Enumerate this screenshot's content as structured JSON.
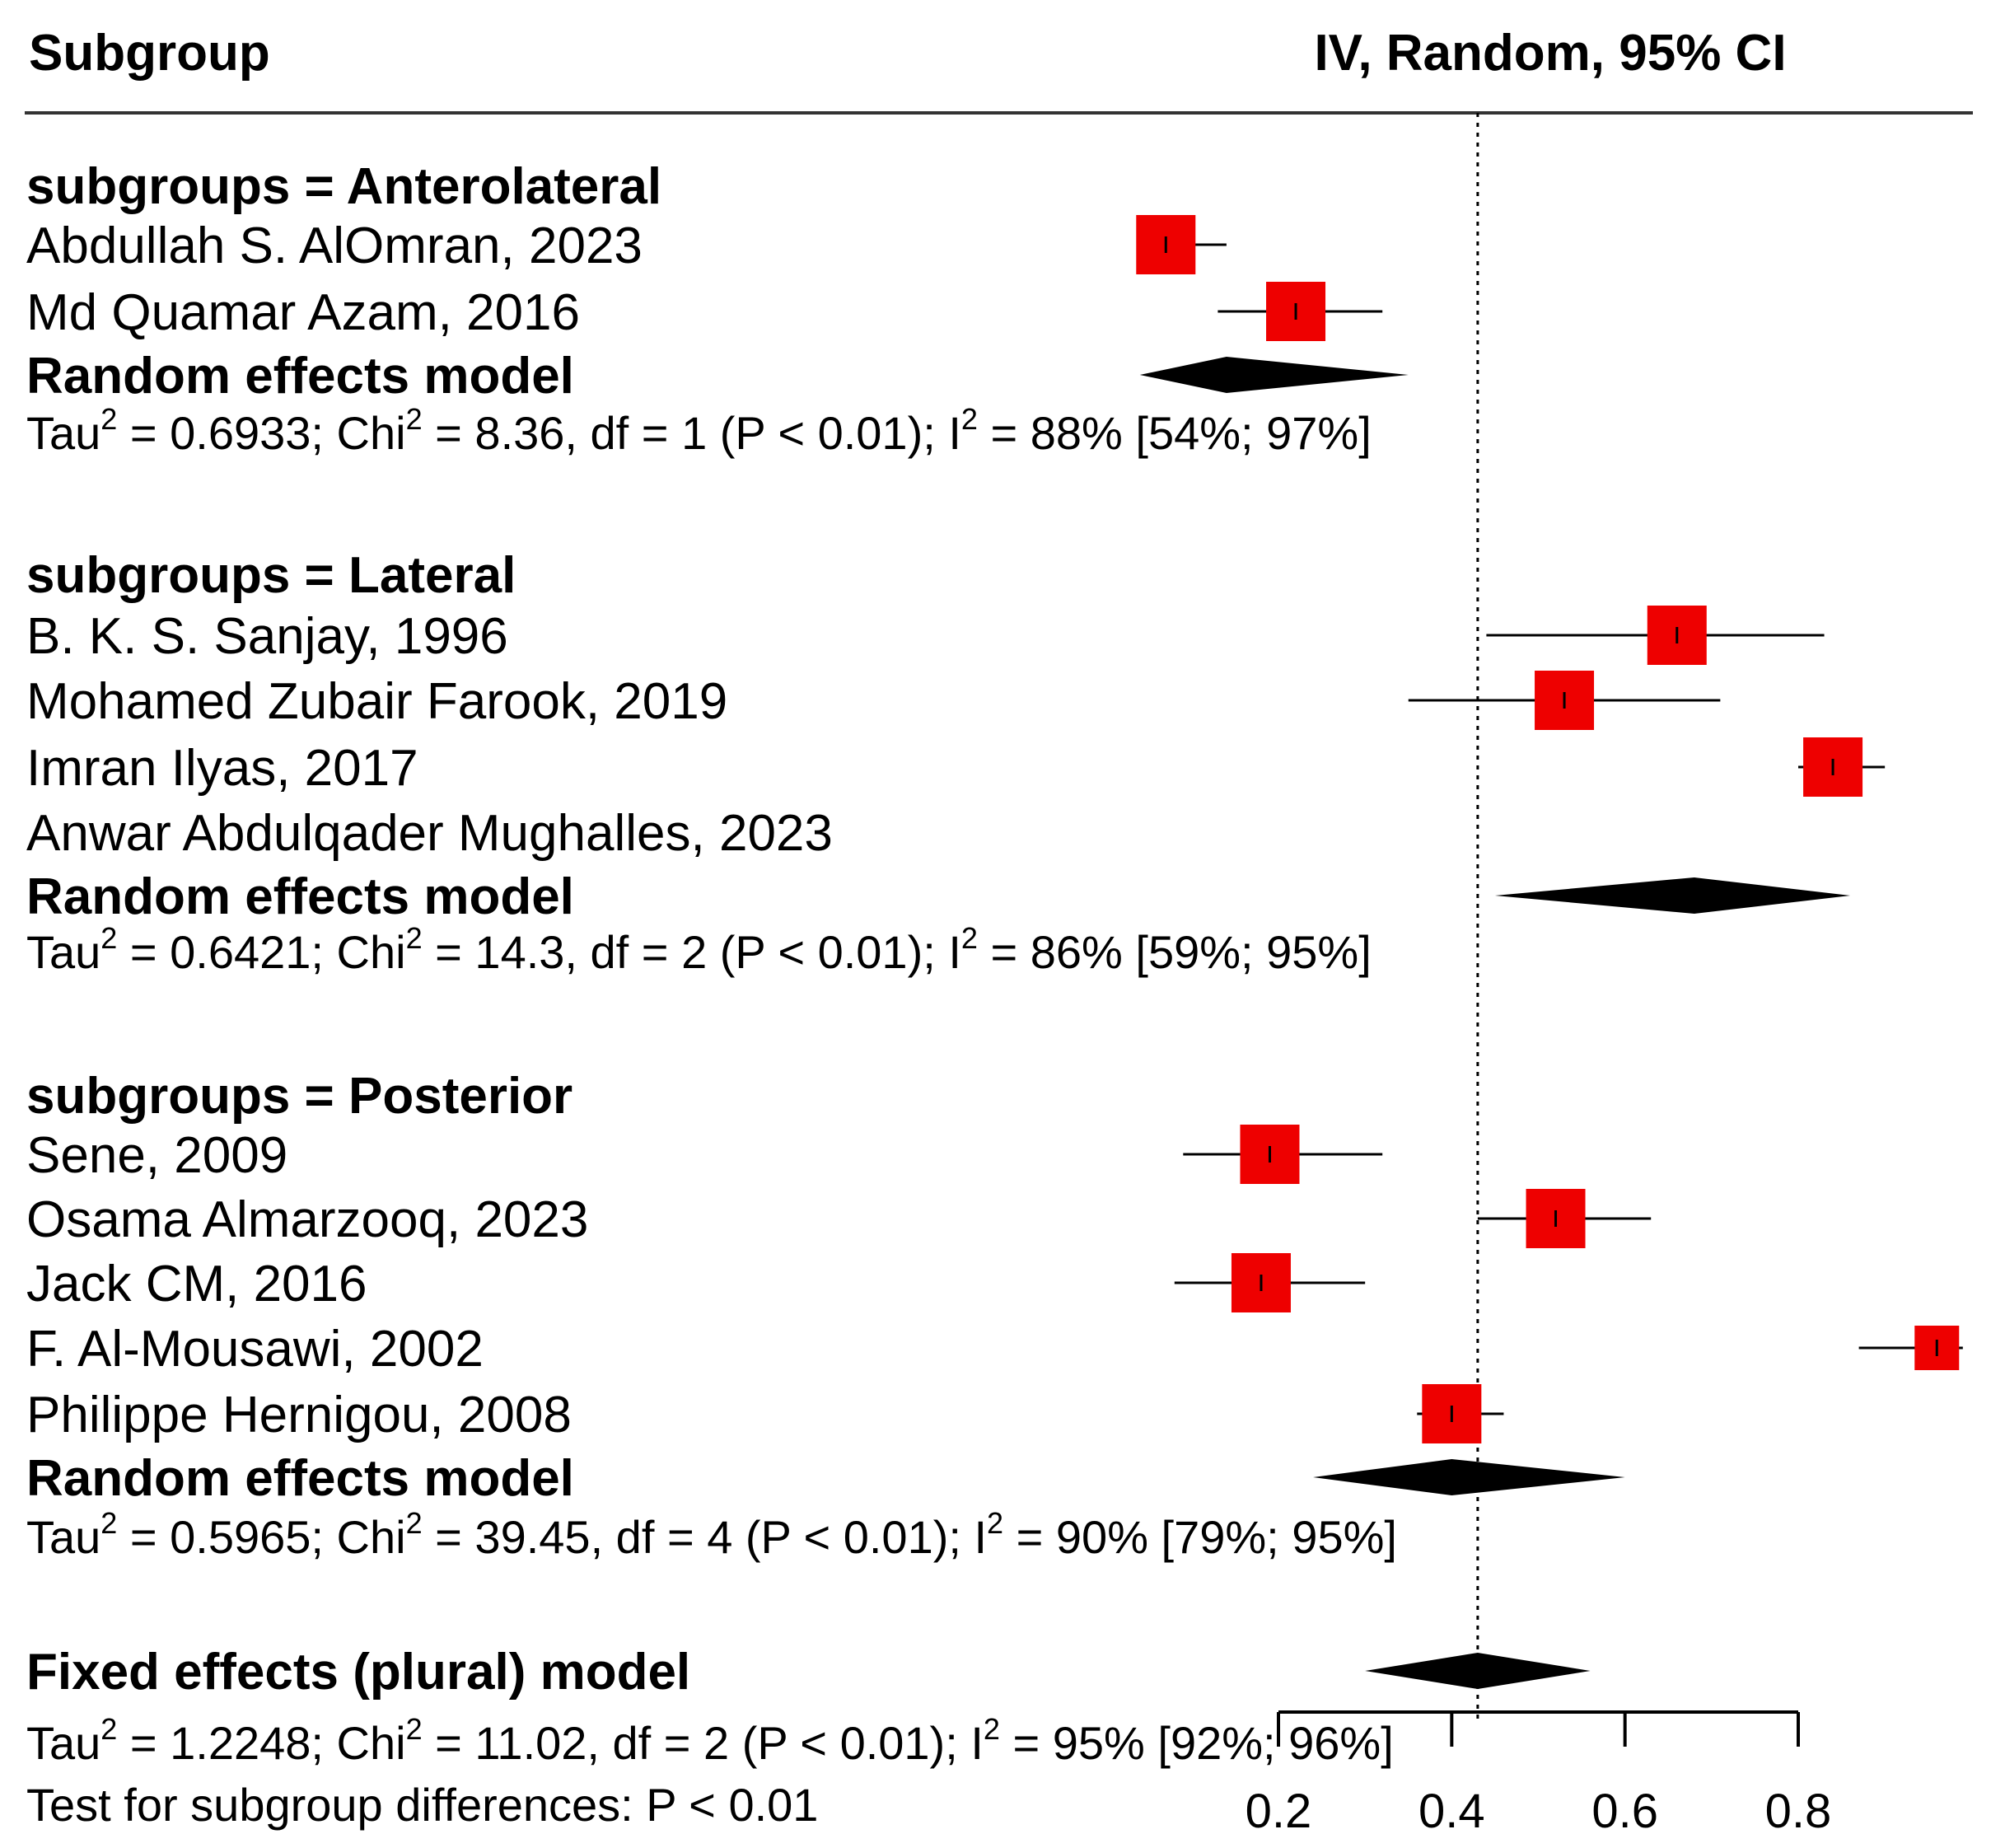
{
  "header": {
    "subgroup_label": "Subgroup",
    "ci_label": "IV, Random, 95% CI"
  },
  "chart_data": {
    "type": "forest",
    "x_ticks": [
      0.2,
      0.4,
      0.6,
      0.8
    ],
    "xlim": [
      0.2,
      0.8
    ],
    "reference_line": 0.43,
    "colors": {
      "square": "#ee0000",
      "diamond": "#000000",
      "text": "#000000"
    },
    "groups": [
      {
        "title": "subgroups = Anterolateral",
        "studies": [
          {
            "label": "Abdullah S. AlOmran, 2023",
            "est": 0.07,
            "lo": 0.04,
            "hi": 0.14,
            "w": 1.0
          },
          {
            "label": "Md Quamar Azam, 2016",
            "est": 0.22,
            "lo": 0.13,
            "hi": 0.32,
            "w": 1.0
          }
        ],
        "model_label": "Random effects model",
        "model": {
          "est": 0.14,
          "lo": 0.04,
          "hi": 0.35
        },
        "het": {
          "tau": "Tau",
          "tau_rest": " = 0.6933; Chi",
          "chi_rest": " = 8.36, df = 1 (P < 0.01); I",
          "i_rest": " = 88% [54%; 97%]",
          "sup": "2"
        }
      },
      {
        "title": "subgroups = Lateral",
        "studies": [
          {
            "label": "B. K. S. Sanjay, 1996",
            "est": 0.66,
            "lo": 0.44,
            "hi": 0.83,
            "w": 1.0
          },
          {
            "label": "Mohamed Zubair Farook, 2019",
            "est": 0.53,
            "lo": 0.35,
            "hi": 0.71,
            "w": 1.0
          },
          {
            "label": "Imran Ilyas, 2017",
            "est": 0.84,
            "lo": 0.8,
            "hi": 0.9,
            "w": 1.0
          },
          {
            "label": "Anwar Abdulqader Mughalles, 2023",
            "est": null,
            "lo": null,
            "hi": null,
            "w": 0
          }
        ],
        "model_label": "Random effects model",
        "model": {
          "est": 0.68,
          "lo": 0.45,
          "hi": 0.86
        },
        "het": {
          "tau": "Tau",
          "tau_rest": " = 0.6421; Chi",
          "chi_rest": " = 14.3, df = 2 (P < 0.01); I",
          "i_rest": " = 86% [59%; 95%]",
          "sup": "2"
        }
      },
      {
        "title": "subgroups = Posterior",
        "studies": [
          {
            "label": "Sene, 2009",
            "est": 0.19,
            "lo": 0.09,
            "hi": 0.32,
            "w": 1.0
          },
          {
            "label": "Osama Almarzooq, 2023",
            "est": 0.52,
            "lo": 0.43,
            "hi": 0.63,
            "w": 1.0
          },
          {
            "label": "Jack CM, 2016",
            "est": 0.18,
            "lo": 0.08,
            "hi": 0.3,
            "w": 1.0
          },
          {
            "label": "F. Al-Mousawi, 2002",
            "est": 0.96,
            "lo": 0.87,
            "hi": 0.99,
            "w": 0.75
          },
          {
            "label": "Philippe Hernigou, 2008",
            "est": 0.4,
            "lo": 0.36,
            "hi": 0.46,
            "w": 1.0
          }
        ],
        "model_label": "Random effects model",
        "model": {
          "est": 0.4,
          "lo": 0.24,
          "hi": 0.6
        },
        "het": {
          "tau": "Tau",
          "tau_rest": " = 0.5965; Chi",
          "chi_rest": " = 39.45, df = 4 (P < 0.01); I",
          "i_rest": " = 90% [79%; 95%]",
          "sup": "2"
        }
      }
    ],
    "overall": {
      "label": "Fixed effects (plural) model",
      "model": {
        "est": 0.43,
        "lo": 0.3,
        "hi": 0.56
      },
      "het": {
        "tau": "Tau",
        "tau_rest": " = 1.2248; Chi",
        "chi_rest": " = 11.02, df = 2 (P < 0.01); I",
        "i_rest": " = 95% [92%; 96%]",
        "sup": "2"
      },
      "test_label": "Test for subgroup differences:  P < 0.01"
    }
  }
}
